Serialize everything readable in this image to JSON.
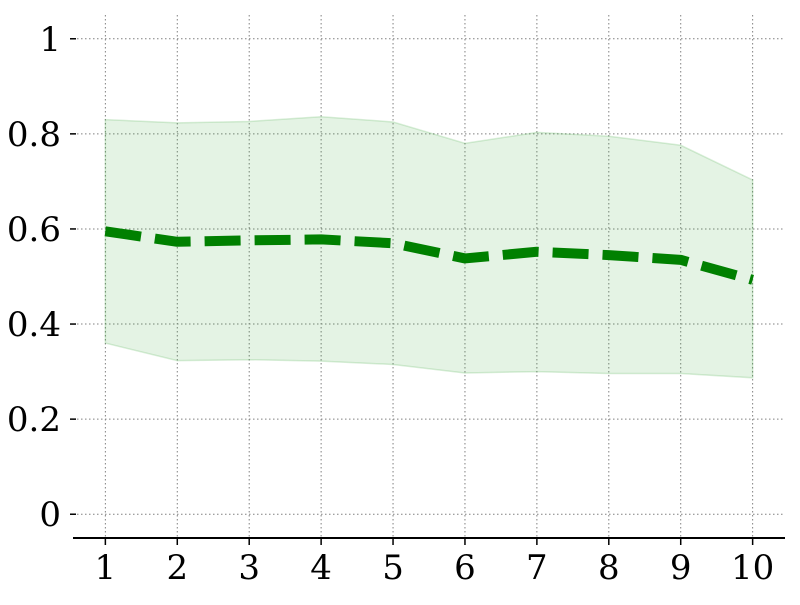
{
  "chart_data": {
    "type": "line",
    "title": "",
    "xlabel": "",
    "ylabel": "",
    "x": [
      1,
      2,
      3,
      4,
      5,
      6,
      7,
      8,
      9,
      10
    ],
    "series": [
      {
        "values": [
          0.595,
          0.573,
          0.576,
          0.578,
          0.57,
          0.538,
          0.552,
          0.545,
          0.535,
          0.493
        ],
        "lower": [
          0.36,
          0.323,
          0.325,
          0.322,
          0.315,
          0.297,
          0.3,
          0.296,
          0.296,
          0.287
        ],
        "upper": [
          0.83,
          0.823,
          0.826,
          0.836,
          0.825,
          0.78,
          0.803,
          0.795,
          0.776,
          0.703
        ],
        "line_color": "#008000",
        "band_color": "#2ca02c",
        "line_style": "dashed"
      }
    ],
    "xticks": [
      "1",
      "2",
      "3",
      "4",
      "5",
      "6",
      "7",
      "8",
      "9",
      "10"
    ],
    "yticks": [
      {
        "value": 0,
        "label": "0"
      },
      {
        "value": 0.2,
        "label": "0.2"
      },
      {
        "value": 0.4,
        "label": "0.4"
      },
      {
        "value": 0.6,
        "label": "0.6"
      },
      {
        "value": 0.8,
        "label": "0.8"
      },
      {
        "value": 1,
        "label": "1"
      }
    ],
    "xlim": [
      0.55,
      10.45
    ],
    "ylim": [
      -0.05,
      1.05
    ],
    "grid": true,
    "grid_color": "#808080",
    "axis_color": "#000000"
  }
}
